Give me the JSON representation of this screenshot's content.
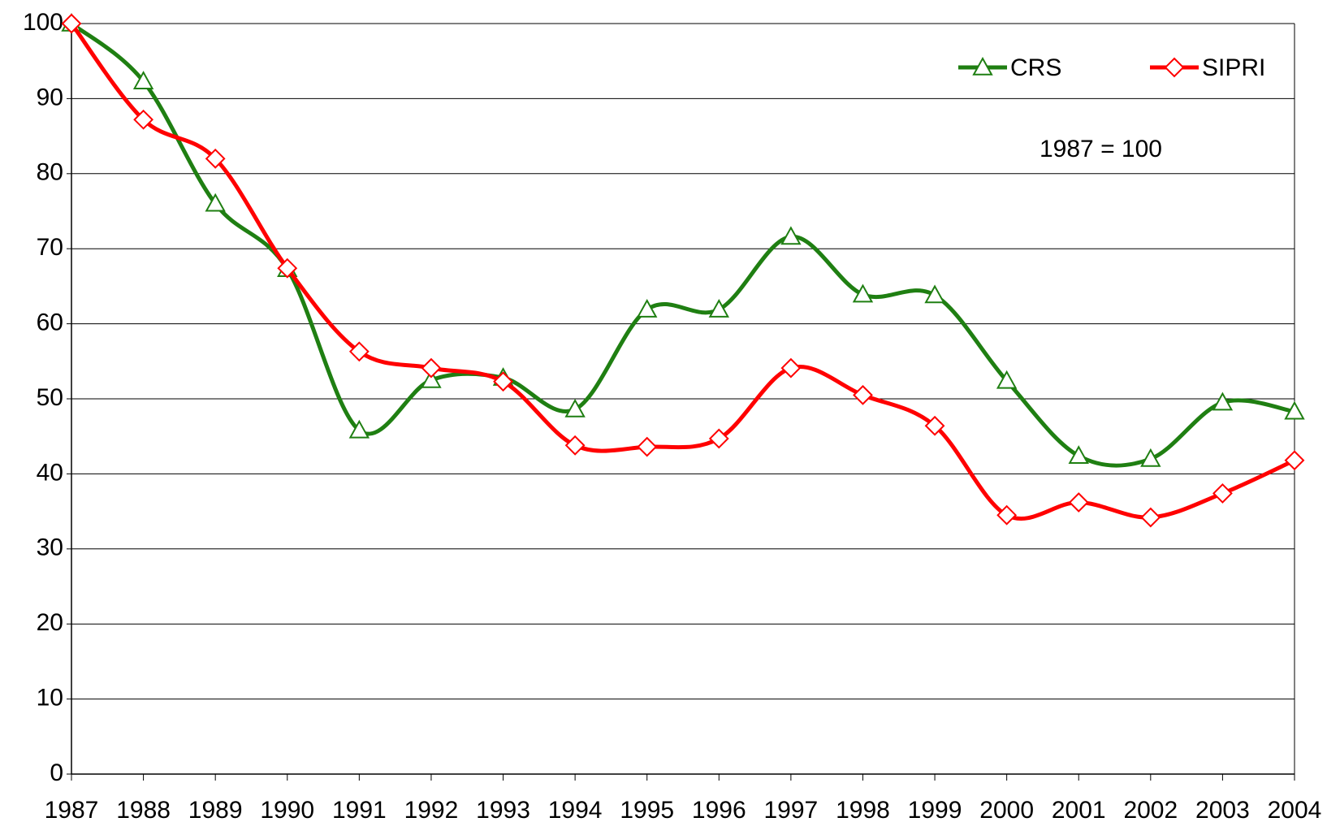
{
  "chart_data": {
    "type": "line",
    "annotations": [
      "1987 = 100"
    ],
    "categories": [
      "1987",
      "1988",
      "1989",
      "1990",
      "1991",
      "1992",
      "1993",
      "1994",
      "1995",
      "1996",
      "1997",
      "1998",
      "1999",
      "2000",
      "2001",
      "2002",
      "2003",
      "2004"
    ],
    "series": [
      {
        "name": "CRS",
        "color": "#1f7f12",
        "marker": "triangle",
        "values": [
          100,
          92.3,
          76,
          67.3,
          45.8,
          52.5,
          52.8,
          48.6,
          61.9,
          61.9,
          71.6,
          63.9,
          63.8,
          52.4,
          42.4,
          42.0,
          49.5,
          48.3
        ]
      },
      {
        "name": "SIPRI",
        "color": "#ff0000",
        "marker": "diamond",
        "values": [
          100,
          87.2,
          82.0,
          67.4,
          56.3,
          54.1,
          52.3,
          43.8,
          43.6,
          44.7,
          54.1,
          50.5,
          46.4,
          34.5,
          36.2,
          34.2,
          37.4,
          41.8
        ]
      }
    ],
    "ylim": [
      0,
      100
    ],
    "yticks": [
      0,
      10,
      20,
      30,
      40,
      50,
      60,
      70,
      80,
      90,
      100
    ],
    "grid": true,
    "smooth": true,
    "legend": "top-right"
  }
}
